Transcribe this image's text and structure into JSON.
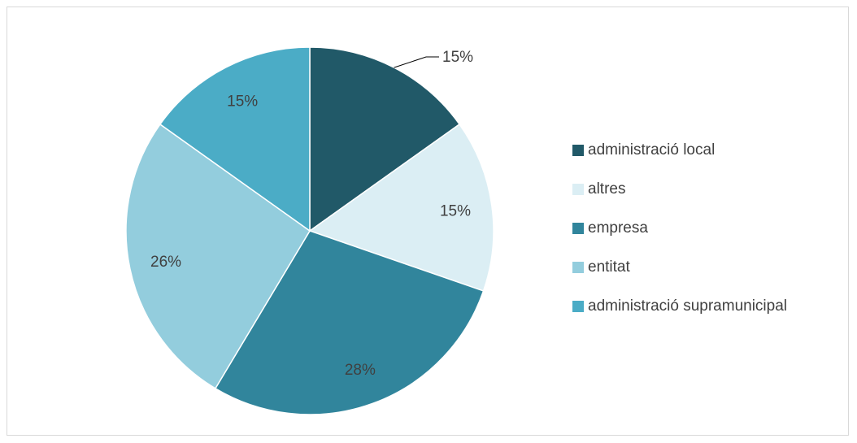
{
  "chart_data": {
    "type": "pie",
    "title": "",
    "categories": [
      "administració local",
      "altres",
      "empresa",
      "entitat",
      "administració supramunicipal"
    ],
    "values": [
      15,
      15,
      28,
      26,
      15
    ],
    "labels": [
      "15%",
      "15%",
      "28%",
      "26%",
      "15%"
    ],
    "colors": [
      "#215968",
      "#dbeef4",
      "#31859c",
      "#93cddd",
      "#4bacc6"
    ],
    "legend_position": "right"
  }
}
